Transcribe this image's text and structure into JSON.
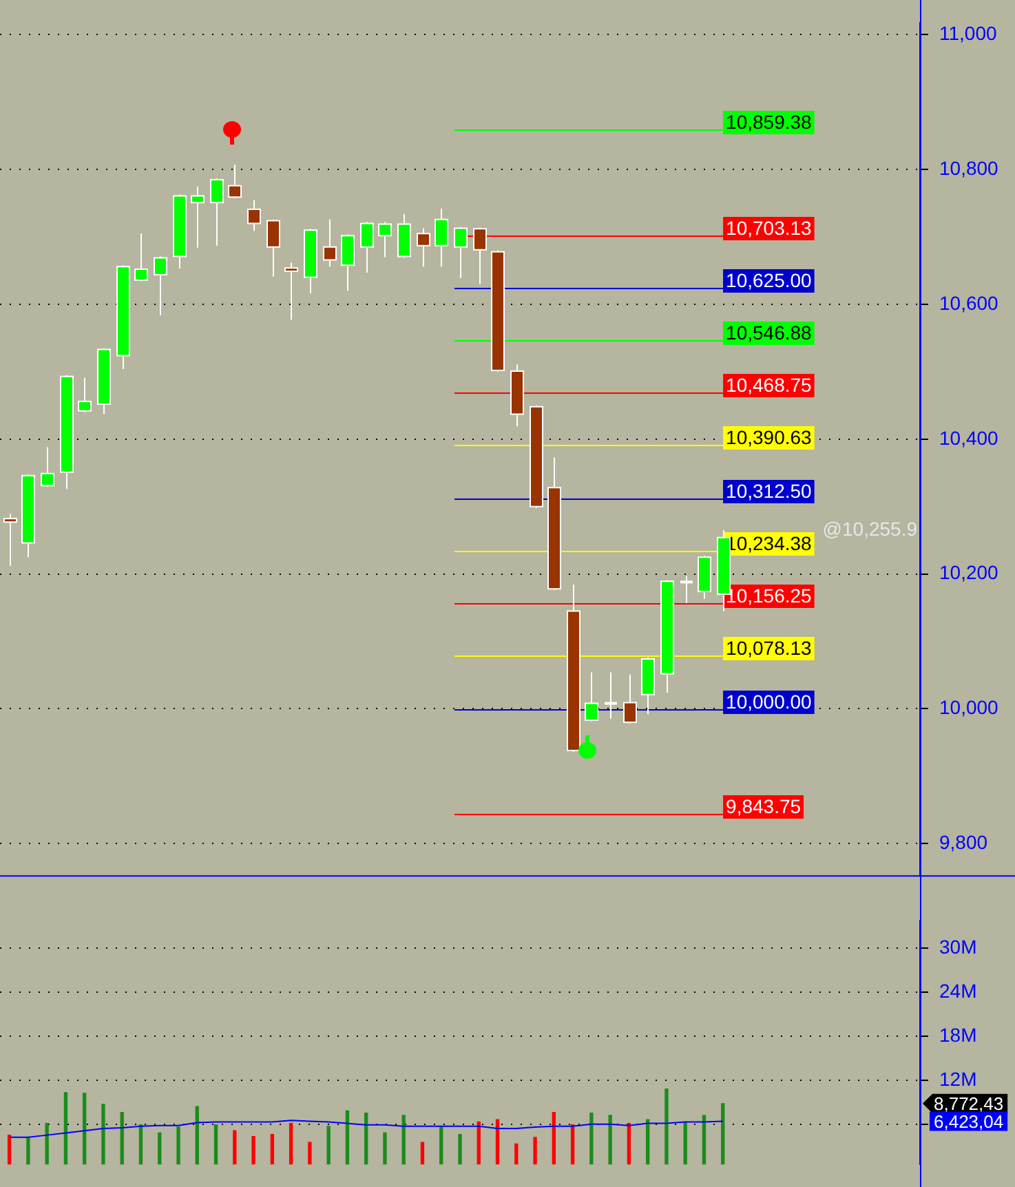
{
  "chart_data": [
    {
      "type": "candlestick",
      "categories": [
        null,
        null,
        null,
        null,
        null,
        null,
        null,
        null,
        null,
        null,
        null,
        null,
        null,
        null,
        null,
        null,
        null,
        null,
        null,
        null,
        null,
        null,
        null,
        null,
        null,
        null,
        null,
        null,
        null,
        null,
        null,
        null,
        null,
        null,
        null,
        null,
        null,
        null,
        null,
        null,
        null,
        null,
        null,
        null,
        null,
        null,
        null,
        null,
        null
      ],
      "ohlc": [
        [
          10282,
          10289,
          10212,
          10277
        ],
        [
          10246,
          10348,
          10225,
          10346
        ],
        [
          10331,
          10388,
          10329,
          10349
        ],
        [
          10351,
          10495,
          10326,
          10493
        ],
        [
          10442,
          10491,
          10440,
          10456
        ],
        [
          10452,
          10535,
          10437,
          10533
        ],
        [
          10524,
          10658,
          10504,
          10656
        ],
        [
          10636,
          10705,
          10634,
          10652
        ],
        [
          10644,
          10671,
          10584,
          10669
        ],
        [
          10671,
          10763,
          10653,
          10761
        ],
        [
          10751,
          10775,
          10684,
          10761
        ],
        [
          10751,
          10787,
          10687,
          10785
        ],
        [
          10776,
          10807,
          10757,
          10759
        ],
        [
          10741,
          10755,
          10709,
          10720
        ],
        [
          10724,
          10726,
          10641,
          10685
        ],
        [
          10654,
          10662,
          10577,
          10649
        ],
        [
          10640,
          10712,
          10616,
          10710
        ],
        [
          10685,
          10726,
          10656,
          10666
        ],
        [
          10658,
          10704,
          10620,
          10702
        ],
        [
          10685,
          10722,
          10647,
          10720
        ],
        [
          10702,
          10722,
          10670,
          10719
        ],
        [
          10671,
          10734,
          10669,
          10719
        ],
        [
          10705,
          10713,
          10656,
          10687
        ],
        [
          10687,
          10742,
          10656,
          10726
        ],
        [
          10685,
          10715,
          10639,
          10713
        ],
        [
          10712,
          10714,
          10630,
          10681
        ],
        [
          10678,
          10680,
          10500,
          10502
        ],
        [
          10501,
          10511,
          10419,
          10437
        ],
        [
          10448,
          10450,
          10298,
          10300
        ],
        [
          10328,
          10373,
          10176,
          10178
        ],
        [
          10145,
          10184,
          9936,
          9938
        ],
        [
          9983,
          10054,
          9981,
          10008
        ],
        [
          10008,
          10054,
          9985,
          10008
        ],
        [
          10009,
          10051,
          9978,
          9980
        ],
        [
          10021,
          10076,
          9992,
          10074
        ],
        [
          10052,
          10191,
          10024,
          10189
        ],
        [
          10188,
          10197,
          10157,
          10188
        ],
        [
          10174,
          10227,
          10163,
          10225
        ],
        [
          10170,
          10265,
          10145,
          10254
        ],
        null,
        null,
        null,
        null,
        null,
        null,
        null,
        null,
        null,
        null
      ],
      "colors": [
        "#993300",
        "#00ff00",
        "#00ff00",
        "#00ff00",
        "#00ff00",
        "#00ff00",
        "#00ff00",
        "#00ff00",
        "#00ff00",
        "#00ff00",
        "#00ff00",
        "#00ff00",
        "#993300",
        "#993300",
        "#993300",
        "#993300",
        "#00ff00",
        "#993300",
        "#00ff00",
        "#00ff00",
        "#00ff00",
        "#00ff00",
        "#993300",
        "#00ff00",
        "#00ff00",
        "#993300",
        "#993300",
        "#993300",
        "#993300",
        "#993300",
        "#993300",
        "#00ff00",
        "#ffffff",
        "#993300",
        "#00ff00",
        "#00ff00",
        "#ffffff",
        "#00ff00",
        "#00ff00",
        null,
        null,
        null,
        null,
        null,
        null,
        null,
        null,
        null,
        null
      ],
      "ylim": [
        9753,
        11018
      ],
      "yticks": [
        {
          "value": 9800,
          "label": "9,800"
        },
        {
          "value": 10000,
          "label": "10,000"
        },
        {
          "value": 10200,
          "label": "10,200"
        },
        {
          "value": 10400,
          "label": "10,400"
        },
        {
          "value": 10600,
          "label": "10,600"
        },
        {
          "value": 10800,
          "label": "10,800"
        },
        {
          "value": 11000,
          "label": "11,000"
        }
      ],
      "grid": "y",
      "tick_labels": "y",
      "ref_lines": [
        {
          "axis": "y",
          "value": 10859.38,
          "label": "10,859.38",
          "color": "#00ff00"
        },
        {
          "axis": "y",
          "value": 10703.13,
          "label": "10,703.13",
          "color": "#ff0000"
        },
        {
          "axis": "y",
          "value": 10625,
          "label": "10,625.00",
          "color": "#0000cc"
        },
        {
          "axis": "y",
          "value": 10546.88,
          "label": "10,546.88",
          "color": "#00ff00"
        },
        {
          "axis": "y",
          "value": 10468.75,
          "label": "10,468.75",
          "color": "#ff0000"
        },
        {
          "axis": "y",
          "value": 10390.63,
          "label": "10,390.63",
          "color": "#ffff00"
        },
        {
          "axis": "y",
          "value": 10312.5,
          "label": "10,312.50",
          "color": "#0000cc"
        },
        {
          "axis": "y",
          "value": 10234.38,
          "label": "10,234.38",
          "color": "#ffff00"
        },
        {
          "axis": "y",
          "value": 10156.25,
          "label": "10,156.25",
          "color": "#ff0000"
        },
        {
          "axis": "y",
          "value": 10078.13,
          "label": "10,078.13",
          "color": "#ffff00"
        },
        {
          "axis": "y",
          "value": 10000,
          "label": "10,000.00",
          "color": "#0000cc"
        },
        {
          "axis": "y",
          "value": 9843.75,
          "label": "9,843.75",
          "color": "#ff0000"
        }
      ],
      "annotations": [
        "@10,255.9"
      ]
    },
    {
      "type": "bar",
      "categories": [
        null,
        null,
        null,
        null,
        null,
        null,
        null,
        null,
        null,
        null,
        null,
        null,
        null,
        null,
        null,
        null,
        null,
        null,
        null,
        null,
        null,
        null,
        null,
        null,
        null,
        null,
        null,
        null,
        null,
        null,
        null,
        null,
        null,
        null,
        null,
        null,
        null,
        null,
        null,
        null,
        null,
        null,
        null,
        null,
        null,
        null,
        null,
        null,
        null
      ],
      "series": [
        {
          "type": "bar",
          "colors": [
            "#ff0000",
            "#1a8c1a",
            "#1a8c1a",
            "#1a8c1a",
            "#1a8c1a",
            "#1a8c1a",
            "#1a8c1a",
            "#1a8c1a",
            "#1a8c1a",
            "#1a8c1a",
            "#1a8c1a",
            "#1a8c1a",
            "#ff0000",
            "#ff0000",
            "#ff0000",
            "#ff0000",
            "#ff0000",
            "#1a8c1a",
            "#1a8c1a",
            "#1a8c1a",
            "#1a8c1a",
            "#1a8c1a",
            "#ff0000",
            "#1a8c1a",
            "#1a8c1a",
            "#ff0000",
            "#ff0000",
            "#ff0000",
            "#ff0000",
            "#ff0000",
            "#ff0000",
            "#1a8c1a",
            "#1a8c1a",
            "#ff0000",
            "#1a8c1a",
            "#1a8c1a",
            "#1a8c1a",
            "#1a8c1a",
            "#1a8c1a",
            null,
            null,
            null,
            null,
            null,
            null,
            null,
            null,
            null,
            null
          ],
          "values": [
            4.5,
            4.1,
            6.1,
            10.3,
            10.2,
            8.7,
            7.6,
            5.9,
            4.8,
            5.6,
            8.4,
            5.9,
            5.1,
            4.3,
            4.6,
            6.1,
            3.5,
            5.7,
            7.8,
            7.5,
            4.8,
            7.2,
            3.5,
            5.6,
            4.6,
            6.3,
            6.6,
            3.3,
            4.2,
            7.6,
            5.9,
            7.5,
            7.2,
            6.1,
            6.6,
            10.8,
            6.2,
            7.2,
            8.8,
            null,
            null,
            null,
            null,
            null,
            null,
            null,
            null,
            null,
            null
          ]
        },
        {
          "type": "line",
          "color": "#0000ff",
          "values": [
            4.2,
            4.2,
            4.5,
            4.8,
            5.1,
            5.4,
            5.5,
            5.7,
            5.8,
            5.8,
            6.2,
            6.3,
            6.3,
            6.3,
            6.3,
            6.5,
            6.4,
            6.3,
            6.1,
            5.9,
            5.9,
            5.7,
            5.7,
            5.7,
            5.7,
            5.7,
            5.4,
            5.4,
            5.6,
            5.7,
            5.7,
            6.0,
            6.0,
            5.8,
            6.1,
            6.1,
            6.3,
            6.3,
            6.4,
            null,
            null,
            null,
            null,
            null,
            null,
            null,
            null,
            null,
            null
          ]
        }
      ],
      "ylim": [
        0.5,
        33.8
      ],
      "yticks": [
        {
          "value": 6,
          "label": null
        },
        {
          "value": 12,
          "label": "12M"
        },
        {
          "value": 18,
          "label": "18M"
        },
        {
          "value": 24,
          "label": "24M"
        },
        {
          "value": 30,
          "label": "30M"
        }
      ],
      "grid": "y",
      "tick_labels": "y",
      "marker": "none",
      "annotations": [
        "8,772,43",
        "6,423,04"
      ]
    }
  ]
}
